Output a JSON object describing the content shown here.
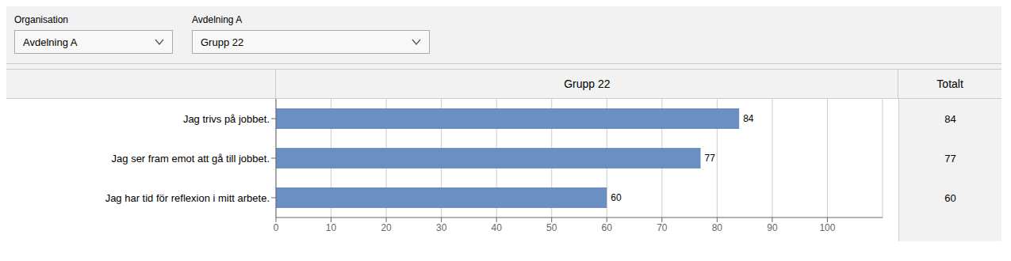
{
  "chart_data": {
    "type": "bar",
    "orientation": "horizontal",
    "title": "Grupp 22",
    "categories": [
      "Jag trivs på jobbet.",
      "Jag ser fram emot att gå till jobbet.",
      "Jag har tid för reflexion i mitt arbete."
    ],
    "values": [
      84,
      77,
      60
    ],
    "color": "#6b8fc2",
    "xlim": [
      0,
      110
    ],
    "xticks": [
      0,
      10,
      20,
      30,
      40,
      50,
      60,
      70,
      80,
      90,
      100
    ],
    "grid": true,
    "data_labels": true,
    "totals_label": "Totalt",
    "totals": [
      84,
      77,
      60
    ],
    "annotations": [
      "Organisation",
      "Avdelning A"
    ],
    "dropdowns": [
      "Avdelning A",
      "Grupp 22"
    ]
  }
}
